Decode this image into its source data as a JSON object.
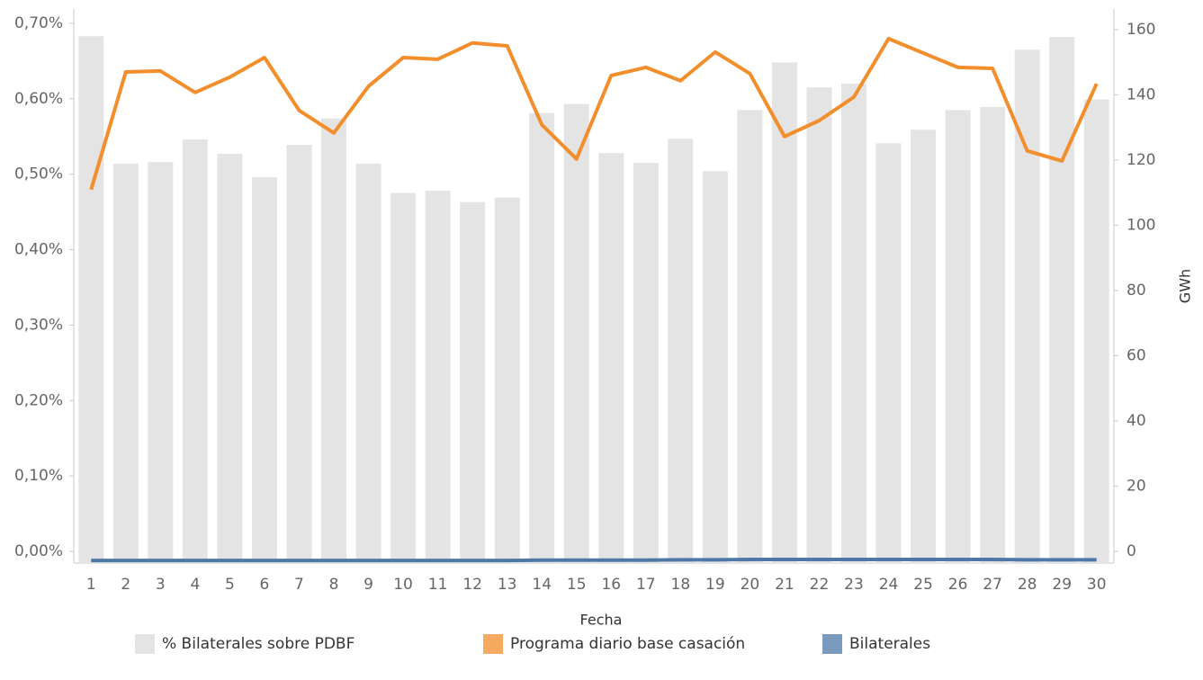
{
  "chart_data": {
    "type": "bar",
    "x_label": "Fecha",
    "y2_label": "GWh",
    "categories": [
      "1",
      "2",
      "3",
      "4",
      "5",
      "6",
      "7",
      "8",
      "9",
      "10",
      "11",
      "12",
      "13",
      "14",
      "15",
      "16",
      "17",
      "18",
      "19",
      "20",
      "21",
      "22",
      "23",
      "24",
      "25",
      "26",
      "27",
      "28",
      "29",
      "30"
    ],
    "ylim": [
      -0.0155,
      0.719
    ],
    "yticks": [
      {
        "value": 0,
        "label": "0,00%"
      },
      {
        "value": 0.1,
        "label": "0,10%"
      },
      {
        "value": 0.2,
        "label": "0,20%"
      },
      {
        "value": 0.3,
        "label": "0,30%"
      },
      {
        "value": 0.4,
        "label": "0,40%"
      },
      {
        "value": 0.5,
        "label": "0,50%"
      },
      {
        "value": 0.6,
        "label": "0,60%"
      },
      {
        "value": 0.7,
        "label": "0,70%"
      }
    ],
    "y2lim": [
      -3.6,
      166.3
    ],
    "y2ticks": [
      0,
      20,
      40,
      60,
      80,
      100,
      120,
      140,
      160
    ],
    "legend": "bottom",
    "series": [
      {
        "name": "% Bilaterales sobre PDBF",
        "type": "bar",
        "axis": "y",
        "color": "#e4e4e4",
        "values": [
          0.683,
          0.514,
          0.516,
          0.546,
          0.527,
          0.496,
          0.539,
          0.574,
          0.514,
          0.475,
          0.478,
          0.463,
          0.469,
          0.581,
          0.593,
          0.528,
          0.515,
          0.547,
          0.504,
          0.585,
          0.648,
          0.615,
          0.62,
          0.541,
          0.559,
          0.585,
          0.589,
          0.665,
          0.682,
          0.599
        ]
      },
      {
        "name": "Programa diario base casación",
        "type": "line",
        "axis": "y2",
        "color": "#f28e2b",
        "values": [
          110.9,
          147.0,
          147.3,
          140.7,
          145.4,
          151.4,
          135.2,
          128.3,
          142.6,
          151.4,
          150.9,
          155.9,
          155.0,
          130.8,
          120.3,
          145.9,
          148.4,
          144.3,
          153.1,
          146.5,
          127.2,
          132.1,
          139.3,
          157.2,
          152.8,
          148.4,
          148.1,
          122.8,
          119.7,
          143.4
        ]
      },
      {
        "name": "Bilaterales",
        "type": "line",
        "axis": "y2",
        "color": "#4e79a7",
        "values": [
          -2.8,
          -2.8,
          -2.8,
          -2.8,
          -2.8,
          -2.8,
          -2.8,
          -2.8,
          -2.8,
          -2.8,
          -2.8,
          -2.8,
          -2.8,
          -2.7,
          -2.7,
          -2.7,
          -2.7,
          -2.6,
          -2.6,
          -2.5,
          -2.5,
          -2.5,
          -2.5,
          -2.5,
          -2.5,
          -2.5,
          -2.5,
          -2.6,
          -2.6,
          -2.6
        ]
      }
    ]
  }
}
